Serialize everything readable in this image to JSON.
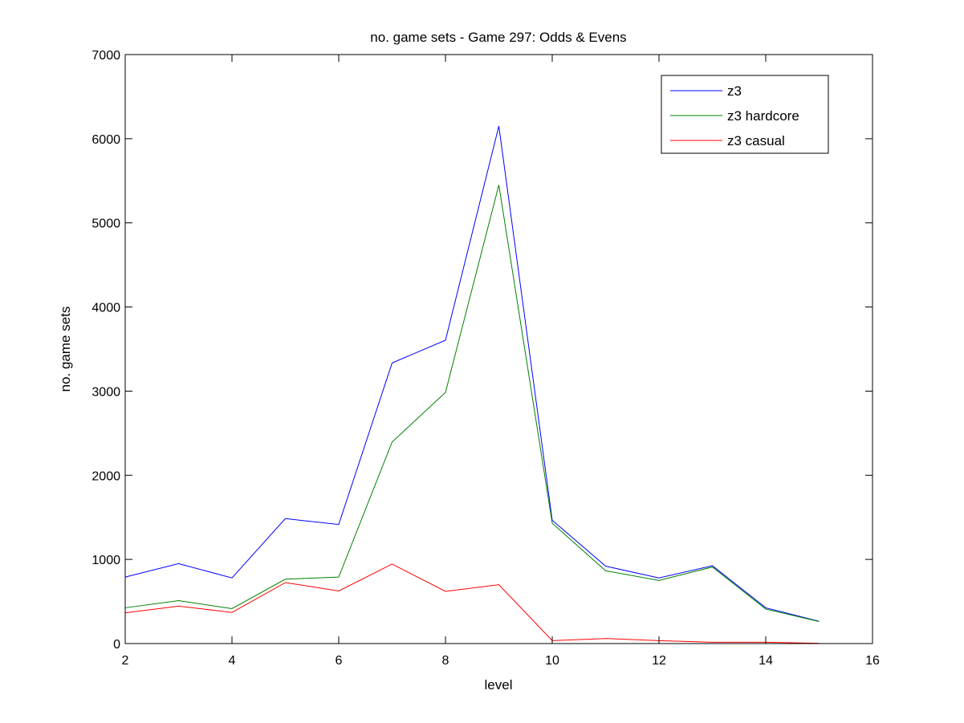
{
  "chart_data": {
    "type": "line",
    "title": "no. game sets - Game 297: Odds & Evens",
    "xlabel": "level",
    "ylabel": "no. game sets",
    "xlim": [
      2,
      16
    ],
    "ylim": [
      0,
      7000
    ],
    "xticks": [
      2,
      4,
      6,
      8,
      10,
      12,
      14,
      16
    ],
    "yticks": [
      0,
      1000,
      2000,
      3000,
      4000,
      5000,
      6000,
      7000
    ],
    "grid": false,
    "legend_position": "top-right",
    "x": [
      2,
      3,
      4,
      5,
      6,
      7,
      8,
      9,
      10,
      11,
      12,
      13,
      14,
      15
    ],
    "series": [
      {
        "name": "z3",
        "color": "#0000ff",
        "values": [
          790,
          950,
          780,
          1485,
          1415,
          3335,
          3605,
          6150,
          1465,
          920,
          780,
          925,
          425,
          265
        ]
      },
      {
        "name": "z3 hardcore",
        "color": "#008000",
        "values": [
          425,
          510,
          415,
          765,
          790,
          2395,
          2985,
          5450,
          1430,
          865,
          750,
          910,
          410,
          262
        ]
      },
      {
        "name": "z3 casual",
        "color": "#ff0000",
        "values": [
          365,
          445,
          370,
          725,
          625,
          945,
          620,
          700,
          35,
          60,
          35,
          15,
          15,
          3
        ]
      }
    ]
  }
}
